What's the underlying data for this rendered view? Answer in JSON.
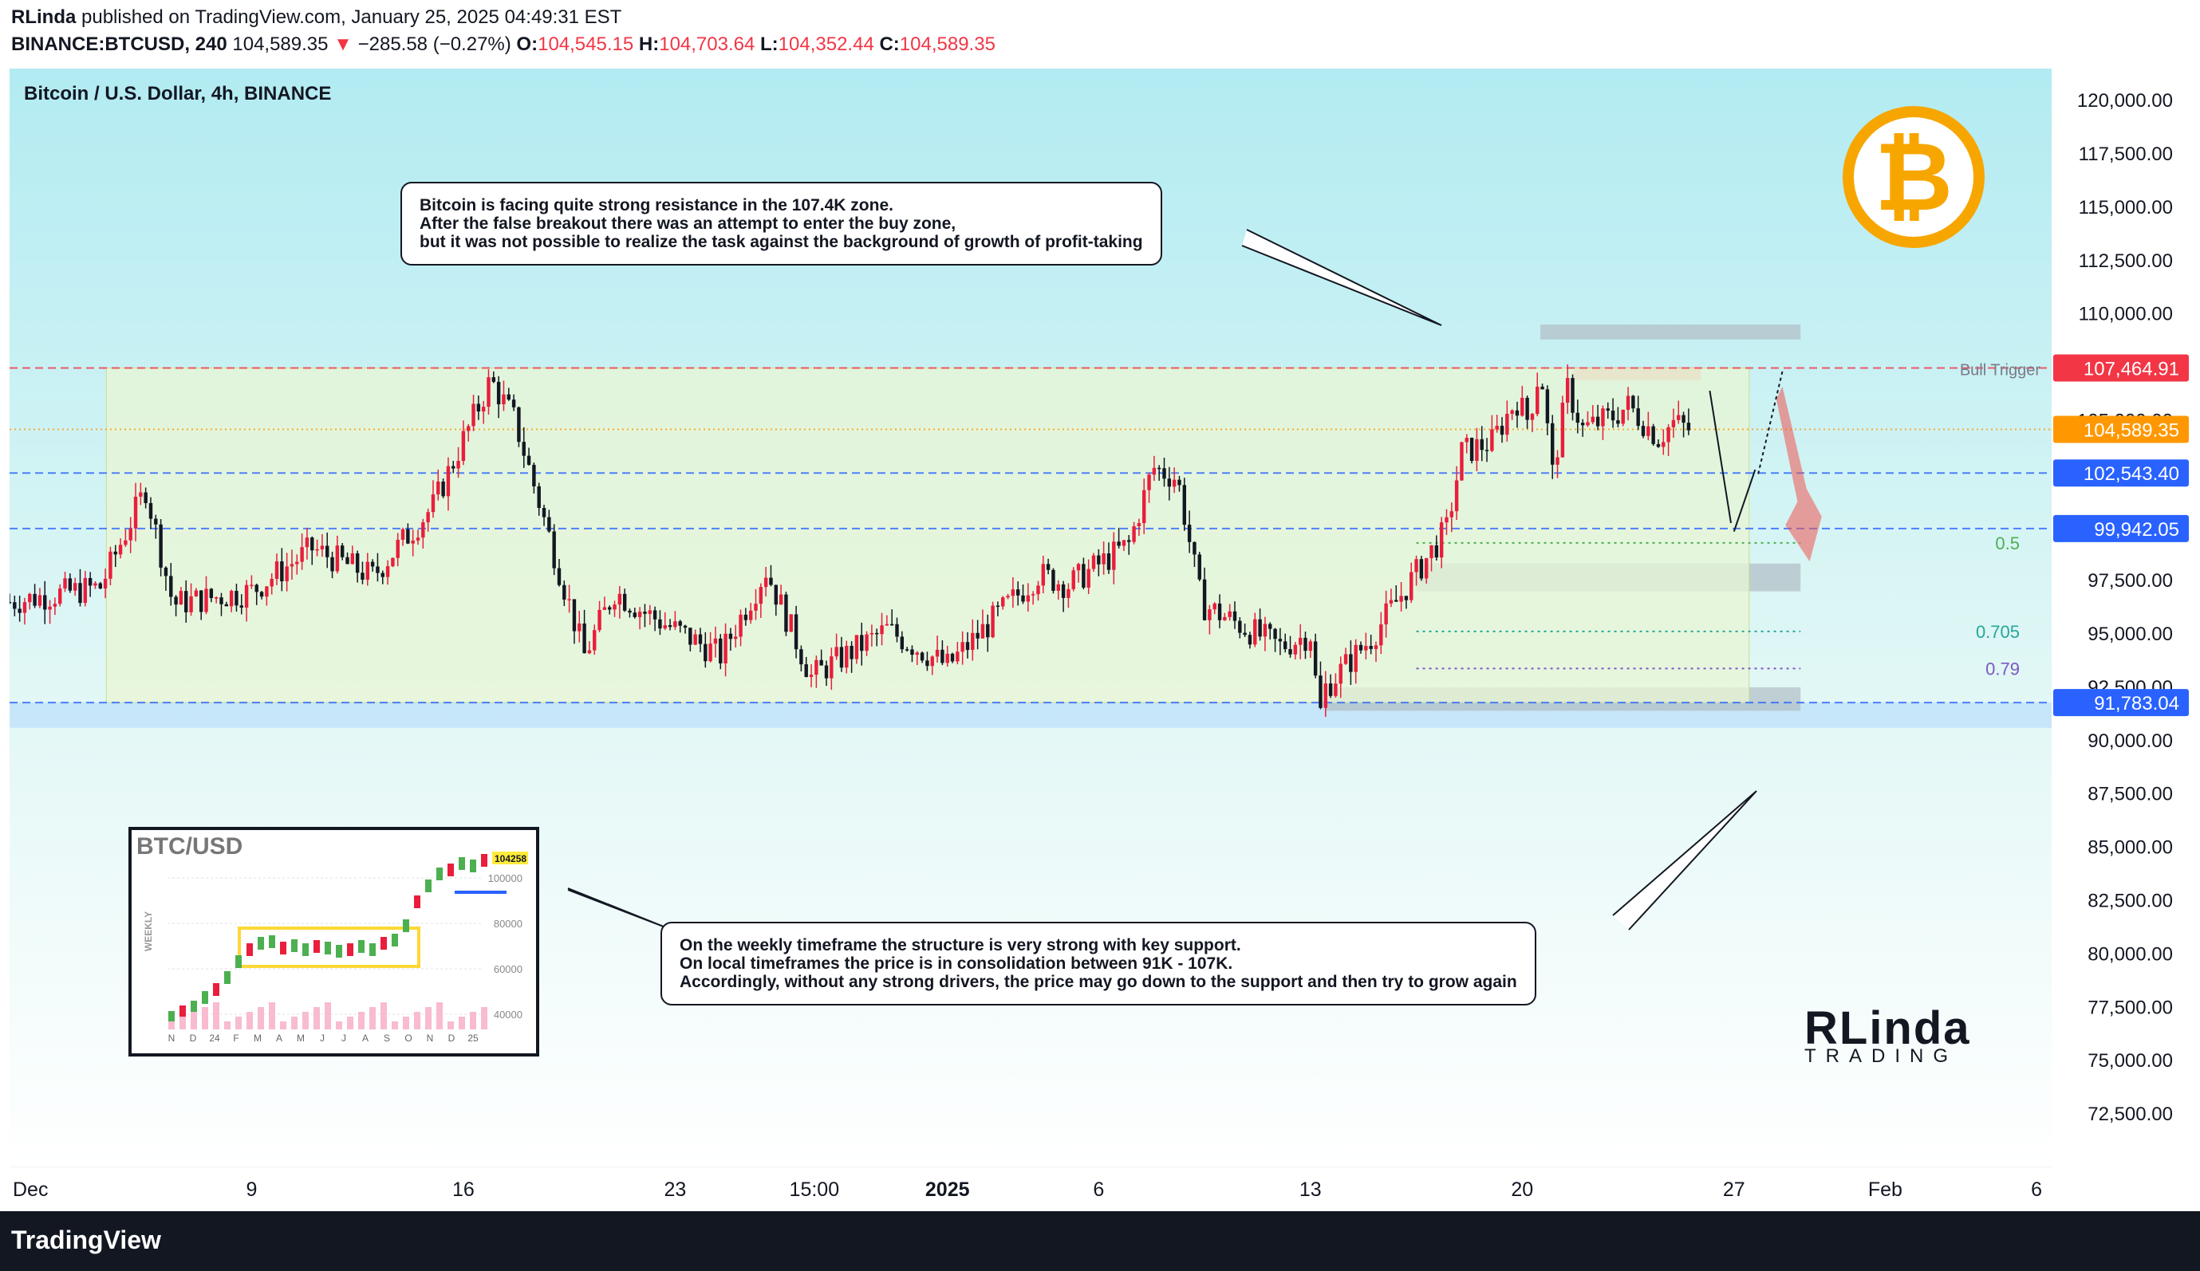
{
  "header": {
    "publisher": "RLinda",
    "published_text": " published on TradingView.com, January 25, 2025 04:49:31 EST",
    "symbol": "BINANCE:BTCUSD, 240",
    "last": "104,589.35",
    "change": "−285.58 (−0.27%)",
    "o_label": "O:",
    "o_value": "104,545.15",
    "h_label": "H:",
    "h_value": "104,703.64",
    "l_label": "L:",
    "l_value": "104,352.44",
    "c_label": "C:",
    "c_value": "104,589.35"
  },
  "legend": "Bitcoin / U.S. Dollar, 4h, BINANCE",
  "notes": {
    "top": "Bitcoin is facing quite strong resistance in the 107.4K zone.\nAfter the false breakout there was an attempt to enter the buy zone,\nbut it was not possible to realize the task against the background of growth of profit-taking",
    "bottom": "On the weekly timeframe the structure is very strong with key support.\nOn local timeframes the price is in consolidation between 91K - 107K.\nAccordingly, without any strong drivers, the price may go down to the support and then try to grow again"
  },
  "inset": {
    "title": "BTC/USD",
    "ylabel": "WEEKLY",
    "y_ticks": [
      "100000",
      "80000",
      "60000",
      "40000"
    ],
    "x_ticks": [
      "N",
      "D",
      "24",
      "F",
      "M",
      "A",
      "M",
      "J",
      "J",
      "A",
      "S",
      "O",
      "N",
      "D",
      "25"
    ],
    "price_tag": "104258"
  },
  "brand": {
    "main": "RLinda",
    "sub": "TRADING"
  },
  "footer": {
    "logo": "TradingView"
  },
  "colors": {
    "up": "#e91e3c",
    "down": "#131722",
    "accent_red": "#f23645",
    "orange": "#ff9800",
    "blue": "#2962ff",
    "band": "#bbdefb",
    "range": "#e8f5d4",
    "bg_top": "#b2ebf2"
  },
  "chart_data": {
    "type": "candlestick",
    "title": "Bitcoin / U.S. Dollar, 4h, BINANCE",
    "ylim": [
      70000,
      121500
    ],
    "y_ticks": [
      72500,
      75000,
      77500,
      80000,
      82500,
      85000,
      87500,
      90000,
      92500,
      95000,
      97500,
      100000,
      102500,
      105000,
      107500,
      110000,
      112500,
      115000,
      117500,
      120000
    ],
    "y_tick_labels": [
      "72,500.00",
      "75,000.00",
      "77,500.00",
      "80,000.00",
      "82,500.00",
      "85,000.00",
      "87,500.00",
      "90,000.00",
      "92,500.00",
      "95,000.00",
      "97,500.00",
      "100,000.00",
      "102,500.00",
      "105,000.00",
      "107,500.00",
      "110,000.00",
      "112,500.00",
      "115,000.00",
      "117,500.00",
      "120,000.00"
    ],
    "x_ticks": [
      {
        "label": "Dec",
        "day": 0
      },
      {
        "label": "9",
        "day": 8
      },
      {
        "label": "16",
        "day": 15
      },
      {
        "label": "23",
        "day": 22
      },
      {
        "label": "15:00",
        "day": 26.6
      },
      {
        "label": "2025",
        "day": 31
      },
      {
        "label": "6",
        "day": 36
      },
      {
        "label": "13",
        "day": 43
      },
      {
        "label": "20",
        "day": 50
      },
      {
        "label": "27",
        "day": 57
      },
      {
        "label": "Feb",
        "day": 62
      },
      {
        "label": "6",
        "day": 67
      }
    ],
    "xlim_days": [
      0,
      67.5
    ],
    "price_path": [
      [
        0,
        96500
      ],
      [
        3,
        97200
      ],
      [
        4.5,
        101800
      ],
      [
        5.4,
        96400
      ],
      [
        8,
        97000
      ],
      [
        10,
        99000
      ],
      [
        12,
        97700
      ],
      [
        14,
        101000
      ],
      [
        15.9,
        106900
      ],
      [
        16.7,
        105000
      ],
      [
        19,
        94000
      ],
      [
        20,
        97000
      ],
      [
        21,
        96000
      ],
      [
        23.5,
        94000
      ],
      [
        25,
        98000
      ],
      [
        26.5,
        93000
      ],
      [
        29,
        95200
      ],
      [
        31,
        93500
      ],
      [
        34,
        97800
      ],
      [
        35,
        97300
      ],
      [
        37,
        99200
      ],
      [
        37.8,
        102800
      ],
      [
        38.6,
        102300
      ],
      [
        39.4,
        96400
      ],
      [
        42,
        94400
      ],
      [
        43,
        95000
      ],
      [
        43.3,
        91100
      ],
      [
        43.5,
        92500
      ],
      [
        45,
        94800
      ],
      [
        47.5,
        99900
      ],
      [
        48,
        103500
      ],
      [
        49,
        104000
      ],
      [
        49.8,
        106000
      ],
      [
        50.2,
        105000
      ],
      [
        50.6,
        107600
      ],
      [
        51,
        102500
      ],
      [
        51.5,
        106500
      ],
      [
        52,
        104600
      ],
      [
        53,
        105200
      ],
      [
        53.5,
        105700
      ],
      [
        54.5,
        104200
      ],
      [
        55,
        104900
      ],
      [
        55.5,
        104589
      ]
    ],
    "horizontal_levels": [
      {
        "label": "Bull Trigger",
        "price": 107464.91,
        "tag": "107,464.91",
        "color": "#f23645"
      },
      {
        "price": 104589.35,
        "tag": "104,589.35",
        "color": "#ff9800"
      },
      {
        "price": 102543.4,
        "tag": "102,543.40",
        "color": "#2962ff"
      },
      {
        "price": 99942.05,
        "tag": "99,942.05",
        "color": "#2962ff"
      },
      {
        "price": 91783.04,
        "tag": "91,783.04",
        "color": "#2962ff"
      }
    ],
    "fib_levels": [
      {
        "label": "0.5",
        "price": 99270,
        "color": "#4caf50"
      },
      {
        "label": "0.705",
        "price": 95120,
        "color": "#26a69a"
      },
      {
        "label": "0.79",
        "price": 93380,
        "color": "#7e57c2"
      }
    ],
    "zones": [
      {
        "from": 90600,
        "to": 91783,
        "day_from": 0,
        "day_to": 67.5,
        "color": "#bbdefb"
      },
      {
        "from": 91400,
        "to": 92500,
        "day_from": 43.5,
        "day_to": 59.2,
        "color": "#b0bec5"
      },
      {
        "from": 97000,
        "to": 98300,
        "day_from": 46.5,
        "day_to": 59.2,
        "color": "#b0bec5"
      },
      {
        "from": 108800,
        "to": 109500,
        "day_from": 50.6,
        "day_to": 59.2,
        "color": "#b0bec5"
      },
      {
        "from": 106900,
        "to": 107500,
        "day_from": 51.7,
        "day_to": 55.9,
        "color": "#ef9a9a"
      },
      {
        "from": 91783,
        "to": 107464.91,
        "day_from": 3.2,
        "day_to": 57.5,
        "color": "#e8f5d4"
      }
    ]
  }
}
